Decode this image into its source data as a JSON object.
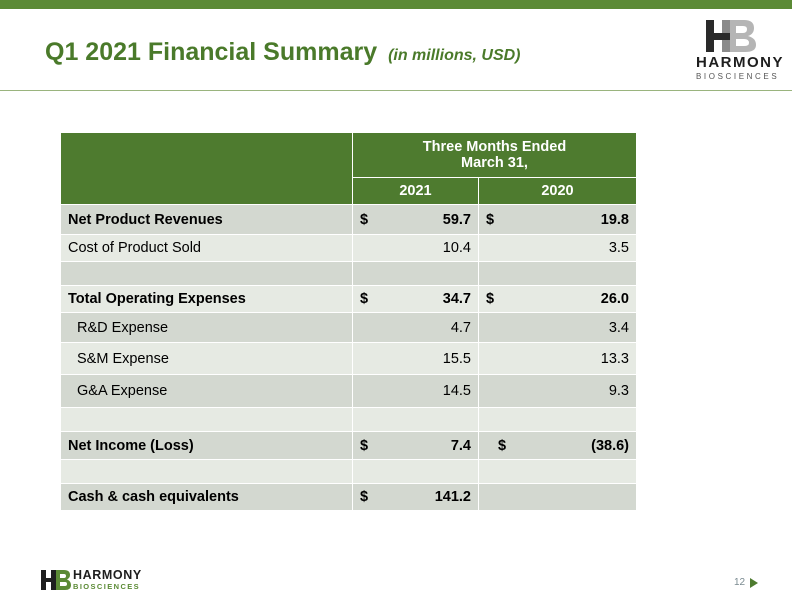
{
  "slide": {
    "title": "Q1 2021 Financial Summary",
    "subtitle": "(in millions, USD)",
    "page_number": "12",
    "colors": {
      "accent_green": "#5b8a35",
      "header_green": "#4e7b2f",
      "row_dark": "#d3d8d0",
      "row_light": "#e6eae3"
    }
  },
  "logo": {
    "word1": "HARMONY",
    "word2": "BIOSCIENCES"
  },
  "table": {
    "period_header": "Three Months Ended",
    "period_header_line2": "March 31,",
    "col_2021": "2021",
    "col_2020": "2020",
    "rows": [
      {
        "label": "Net Product Revenues",
        "cur2021": "$",
        "v2021": "59.7",
        "cur2020": "$",
        "v2020": "19.8"
      },
      {
        "label": "Cost of Product Sold",
        "v2021": "10.4",
        "v2020": "3.5"
      },
      {
        "label": "Total Operating Expenses",
        "cur2021": "$",
        "v2021": "34.7",
        "cur2020": "$",
        "v2020": "26.0"
      },
      {
        "label": "R&D Expense",
        "v2021": "4.7",
        "v2020": "3.4"
      },
      {
        "label": "S&M Expense",
        "v2021": "15.5",
        "v2020": "13.3"
      },
      {
        "label": "G&A Expense",
        "v2021": "14.5",
        "v2020": "9.3"
      },
      {
        "label": "Net Income (Loss)",
        "cur2021": "$",
        "v2021": "7.4",
        "cur2020": "$",
        "v2020": "(38.6)"
      },
      {
        "label": "Cash & cash equivalents",
        "cur2021": "$",
        "v2021": "141.2"
      }
    ]
  }
}
